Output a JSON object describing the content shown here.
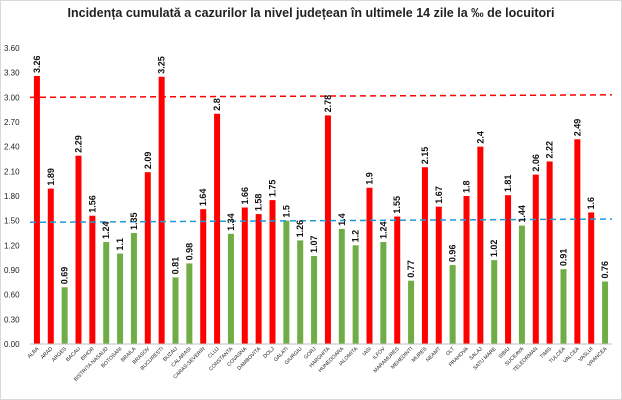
{
  "chart_data": {
    "type": "bar",
    "title": "Incidența cumulată a cazurilor la nivel județean în ultimele 14 zile la ‰ de locuitori",
    "xlabel": "",
    "ylabel": "",
    "ylim": [
      0,
      3.6
    ],
    "yticks": [
      "0.00",
      "0.30",
      "0.60",
      "0.90",
      "1.20",
      "1.50",
      "1.80",
      "2.10",
      "2.40",
      "2.70",
      "3.00",
      "3.30",
      "3.60"
    ],
    "grid": false,
    "categories": [
      "ALBA",
      "ARAD",
      "ARGES",
      "BACAU",
      "BIHOR",
      "BISTRITA NASAUD",
      "BOTOSANI",
      "BRAILA",
      "BRASOV",
      "BUCURESTI",
      "BUZAU",
      "CALARASI",
      "CARAS-SEVERIN",
      "CLUJ",
      "CONSTANTA",
      "COVASNA",
      "DAMBOVITA",
      "DOLJ",
      "GALATI",
      "GIURGIU",
      "GORJ",
      "HARGHITA",
      "HUNEDOARA",
      "IALOMITA",
      "IASI",
      "ILFOV",
      "MARAMURES",
      "MEHEDINTI",
      "MURES",
      "NEAMT",
      "OLT",
      "PRAHOVA",
      "SALAJ",
      "SATU MARE",
      "SIBIU",
      "SUCEAVA",
      "TELEORMAN",
      "TIMIS",
      "TULCEA",
      "VALCEA",
      "VASLUI",
      "VRANCEA"
    ],
    "values": [
      3.26,
      1.89,
      0.69,
      2.29,
      1.56,
      1.24,
      1.1,
      1.35,
      2.09,
      3.25,
      0.81,
      0.98,
      1.64,
      2.8,
      1.34,
      1.66,
      1.58,
      1.75,
      1.5,
      1.26,
      1.07,
      2.78,
      1.4,
      1.2,
      1.9,
      1.24,
      1.55,
      0.77,
      2.15,
      1.67,
      0.96,
      1.8,
      2.4,
      1.02,
      1.81,
      1.44,
      2.06,
      2.22,
      0.91,
      2.49,
      1.6,
      0.76
    ],
    "value_labels": [
      "3.26",
      "1.89",
      "0.69",
      "2.29",
      "1.56",
      "1.24",
      "1.1",
      "1.35",
      "2.09",
      "3.25",
      "0.81",
      "0.98",
      "1.64",
      "2.8",
      "1.34",
      "1.66",
      "1.58",
      "1.75",
      "1.5",
      "1.26",
      "1.07",
      "2.78",
      "1.4",
      "1.2",
      "1.9",
      "1.24",
      "1.55",
      "0.77",
      "2.15",
      "1.67",
      "0.96",
      "1.8",
      "2.4",
      "1.02",
      "1.81",
      "1.44",
      "2.06",
      "2.22",
      "0.91",
      "2.49",
      "1.6",
      "0.76"
    ],
    "reference_lines": [
      {
        "value_start": 3.0,
        "value_end": 3.03,
        "color": "#ff0000",
        "style": "dashed"
      },
      {
        "value_start": 1.48,
        "value_end": 1.52,
        "color": "#1e9ad6",
        "style": "dashed"
      }
    ],
    "threshold": 1.5,
    "colors": {
      "above": "#ff0000",
      "below": "#70ad47"
    }
  }
}
